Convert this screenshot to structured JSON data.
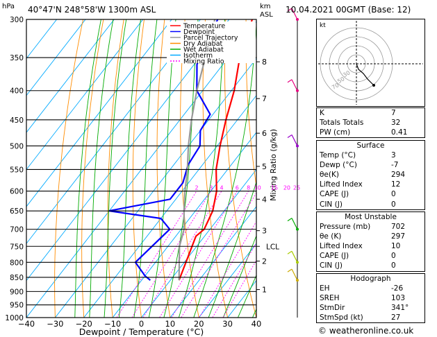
{
  "header": {
    "location": "40°47'N  248°58'W  1300m  ASL",
    "datetime": "10.04.2021  00GMT  (Base: 12)",
    "pressure_unit": "hPa",
    "km_unit": "km",
    "asl_unit": "ASL"
  },
  "chart_data": {
    "type": "line",
    "xlabel": "Dewpoint / Temperature (°C)",
    "ylabel": "Mixing Ratio (g/kg)",
    "xlim": [
      -40,
      40
    ],
    "ylim": [
      1000,
      300
    ],
    "y_scale": "log",
    "pressure_ticks": [
      300,
      350,
      400,
      450,
      500,
      550,
      600,
      650,
      700,
      750,
      800,
      850,
      900,
      950,
      1000
    ],
    "temperature_ticks": [
      -40,
      -30,
      -20,
      -10,
      0,
      10,
      20,
      30,
      40
    ],
    "height_km_ticks": [
      {
        "label": "8",
        "p": 356
      },
      {
        "label": "7",
        "p": 413
      },
      {
        "label": "6",
        "p": 475
      },
      {
        "label": "5",
        "p": 543
      },
      {
        "label": "4",
        "p": 620
      },
      {
        "label": "3",
        "p": 704
      },
      {
        "label": "2",
        "p": 796
      },
      {
        "label": "1",
        "p": 893
      }
    ],
    "lcl": {
      "label": "LCL",
      "p": 750
    },
    "mixing_ratio_labels": [
      "2",
      "3",
      "4",
      "6",
      "8",
      "10",
      "15",
      "20",
      "25"
    ],
    "mixing_ratio_label_p": 600,
    "legend": [
      {
        "name": "Temperature",
        "color": "#ff0000"
      },
      {
        "name": "Dewpoint",
        "color": "#0000ff"
      },
      {
        "name": "Parcel Trajectory",
        "color": "#999999"
      },
      {
        "name": "Dry Adiabat",
        "color": "#ff8c00"
      },
      {
        "name": "Wet Adiabat",
        "color": "#00aa00"
      },
      {
        "name": "Isotherm",
        "color": "#00aaff"
      },
      {
        "name": "Mixing Ratio",
        "color": "#ff00ff"
      }
    ],
    "series": [
      {
        "name": "Temperature",
        "points": [
          [
            3,
            860
          ],
          [
            -3,
            720
          ],
          [
            -2,
            700
          ],
          [
            -4,
            650
          ],
          [
            -8,
            600
          ],
          [
            -14,
            550
          ],
          [
            -19,
            500
          ],
          [
            -24,
            450
          ],
          [
            -29,
            400
          ],
          [
            -36,
            350
          ],
          [
            -42,
            300
          ]
        ]
      },
      {
        "name": "Dewpoint",
        "points": [
          [
            -7,
            860
          ],
          [
            -10,
            845
          ],
          [
            -17,
            800
          ],
          [
            -14,
            700
          ],
          [
            -20,
            670
          ],
          [
            -40,
            650
          ],
          [
            -22,
            620
          ],
          [
            -22,
            580
          ],
          [
            -25,
            540
          ],
          [
            -26,
            500
          ],
          [
            -30,
            470
          ],
          [
            -31,
            440
          ],
          [
            -42,
            400
          ],
          [
            -49,
            360
          ],
          [
            -54,
            300
          ]
        ]
      },
      {
        "name": "Parcel Trajectory",
        "points": [
          [
            3,
            860
          ],
          [
            -6,
            750
          ],
          [
            -9,
            700
          ],
          [
            -14,
            650
          ],
          [
            -19,
            600
          ],
          [
            -24,
            550
          ],
          [
            -30,
            500
          ],
          [
            -36,
            450
          ],
          [
            -42,
            400
          ],
          [
            -48,
            350
          ],
          [
            -55,
            300
          ]
        ]
      }
    ]
  },
  "wind_barbs": [
    {
      "p": 300,
      "color": "#e6007e"
    },
    {
      "p": 400,
      "color": "#e6007e"
    },
    {
      "p": 500,
      "color": "#9900cc"
    },
    {
      "p": 700,
      "color": "#00aa00"
    },
    {
      "p": 800,
      "color": "#aacc00"
    },
    {
      "p": 860,
      "color": "#ccaa00"
    }
  ],
  "hodograph": {
    "unit": "kt",
    "ring_labels": [
      "70",
      "50",
      "30"
    ]
  },
  "indices": [
    {
      "key": "K",
      "value": "7"
    },
    {
      "key": "Totals Totals",
      "value": "32"
    },
    {
      "key": "PW (cm)",
      "value": "0.41"
    }
  ],
  "surface": {
    "title": "Surface",
    "rows": [
      {
        "key": "Temp (°C)",
        "value": "3"
      },
      {
        "key": "Dewp (°C)",
        "value": "-7"
      },
      {
        "key": "θe(K)",
        "value": "294"
      },
      {
        "key": "Lifted Index",
        "value": "12"
      },
      {
        "key": "CAPE (J)",
        "value": "0"
      },
      {
        "key": "CIN (J)",
        "value": "0"
      }
    ]
  },
  "most_unstable": {
    "title": "Most Unstable",
    "rows": [
      {
        "key": "Pressure (mb)",
        "value": "702"
      },
      {
        "key": "θe (K)",
        "value": "297"
      },
      {
        "key": "Lifted Index",
        "value": "10"
      },
      {
        "key": "CAPE (J)",
        "value": "0"
      },
      {
        "key": "CIN (J)",
        "value": "0"
      }
    ]
  },
  "hodograph_table": {
    "title": "Hodograph",
    "rows": [
      {
        "key": "EH",
        "value": "-26"
      },
      {
        "key": "SREH",
        "value": "103"
      },
      {
        "key": "StmDir",
        "value": "341°"
      },
      {
        "key": "StmSpd (kt)",
        "value": "27"
      }
    ]
  },
  "copyright": "© weatheronline.co.uk",
  "colors": {
    "temperature": "#ff0000",
    "dewpoint": "#0000ff",
    "parcel": "#999999",
    "dry": "#ff8c00",
    "wet": "#00aa00",
    "isotherm": "#00aaff",
    "mixing": "#ff00ff"
  }
}
